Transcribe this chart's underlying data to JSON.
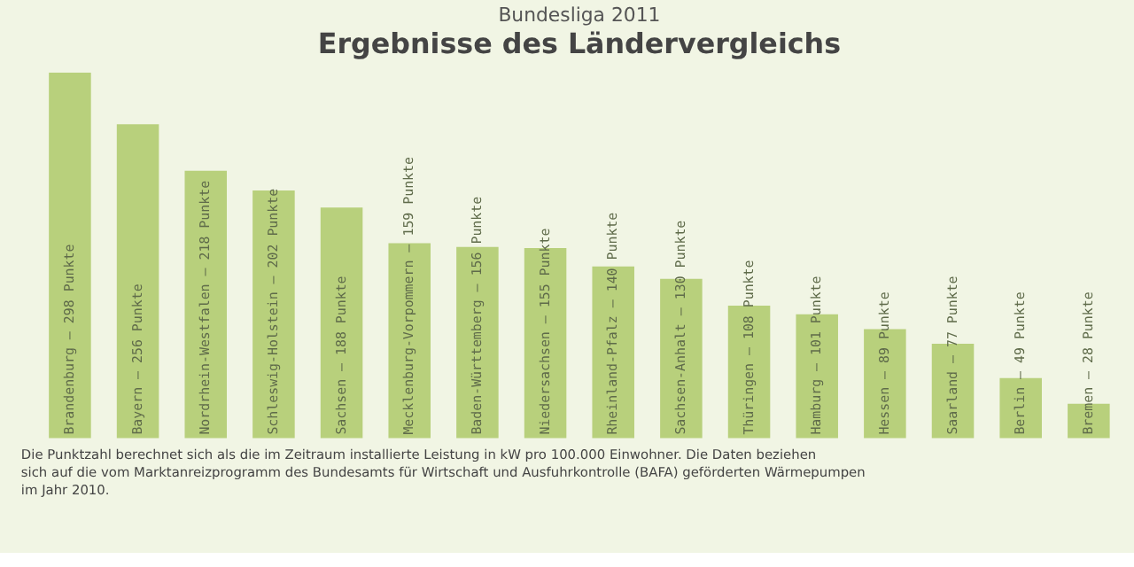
{
  "chart_data": {
    "type": "bar",
    "title": "Ergebnisse des Ländervergleichs",
    "subtitle": "Bundesliga 2011",
    "categories": [
      "Brandenburg –",
      "Bayern –",
      "Nordrhein-Westfalen –",
      "Schleswig-Holstein –",
      "Sachsen –",
      "Mecklenburg-Vorpommern –",
      "Baden-Württemberg –",
      "Niedersachsen –",
      "Rheinland-Pfalz –",
      "Sachsen-Anhalt –",
      "Thüringen –",
      "Hamburg –",
      "Hessen –",
      "Saarland –",
      "Berlin –",
      "Bremen –"
    ],
    "values": [
      298,
      256,
      218,
      202,
      188,
      159,
      156,
      155,
      140,
      130,
      108,
      101,
      89,
      77,
      49,
      28
    ],
    "value_labels": [
      "298 Punkte",
      "256 Punkte",
      "218 Punkte",
      "202 Punkte",
      "188 Punkte",
      "159 Punkte",
      "156 Punkte",
      "155 Punkte",
      "140 Punkte",
      "130 Punkte",
      "108 Punkte",
      "101 Punkte",
      "89 Punkte",
      "77 Punkte",
      "49 Punkte",
      "28 Punkte"
    ],
    "color": "#b8d07c",
    "tick_labels": false,
    "annotations": [
      "Die Punktzahl berechnet sich als die im Zeitraum installierte Leistung in kW pro 100.000 Einwohner. Die Daten beziehen sich auf die vom Marktanreizprogramm des Bundesamts für Wirtschaft und Ausfuhrkontrolle (BAFA) geförderten Wärmepumpen im Jahr 2010."
    ]
  }
}
